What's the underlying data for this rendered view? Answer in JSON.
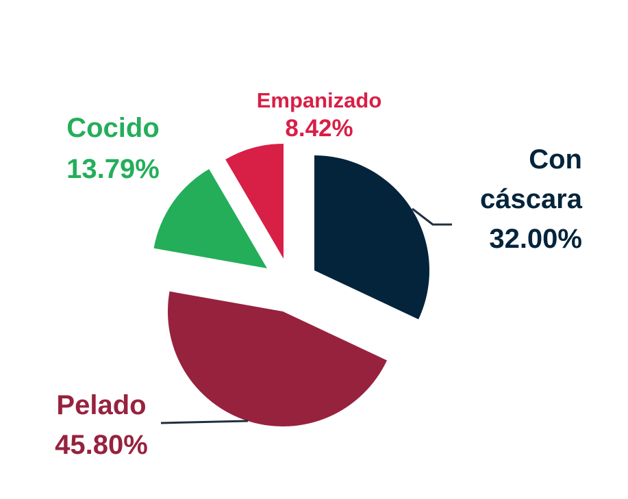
{
  "chart_data": {
    "type": "pie",
    "title": "",
    "slices": [
      {
        "label": "Con cáscara",
        "label_lines": [
          "Con",
          "cáscara"
        ],
        "value": 32.0,
        "value_label": "32.00%",
        "color": "#03243b"
      },
      {
        "label": "Pelado",
        "label_lines": [
          "Pelado"
        ],
        "value": 45.8,
        "value_label": "45.80%",
        "color": "#97223e"
      },
      {
        "label": "Cocido",
        "label_lines": [
          "Cocido"
        ],
        "value": 13.79,
        "value_label": "13.79%",
        "color": "#24ae5a"
      },
      {
        "label": "Empanizado",
        "label_lines": [
          "Empanizado"
        ],
        "value": 8.42,
        "value_label": "8.42%",
        "color": "#d81f46"
      }
    ],
    "legend": "none",
    "exploded": true
  }
}
